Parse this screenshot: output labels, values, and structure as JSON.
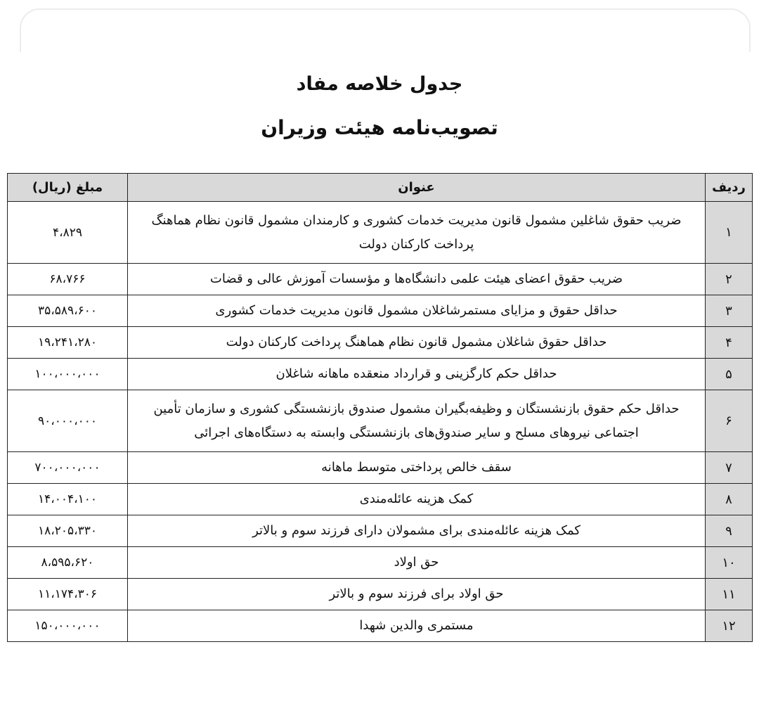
{
  "title": "جدول خلاصه مفاد",
  "subtitle": "تصویب‌نامه هیئت وزیران",
  "table": {
    "headers": {
      "row_no": "ردیف",
      "title": "عنوان",
      "amount": "مبلغ (ریال)"
    },
    "rows": [
      {
        "no": "۱",
        "title": "ضریب حقوق شاغلین مشمول قانون مدیریت خدمات کشوری و کارمندان مشمول قانون نظام هماهنگ پرداخت کارکنان دولت",
        "amount": "۴،۸۲۹"
      },
      {
        "no": "۲",
        "title": "ضریب حقوق اعضای هیئت علمی دانشگاه‌ها و مؤسسات آموزش عالی و قضات",
        "amount": "۶۸،۷۶۶"
      },
      {
        "no": "۳",
        "title": "حداقل حقوق و مزایای مستمرشاغلان مشمول قانون مدیریت خدمات کشوری",
        "amount": "۳۵،۵۸۹،۶۰۰"
      },
      {
        "no": "۴",
        "title": "حداقل حقوق شاغلان مشمول قانون نظام هماهنگ پرداخت کارکنان دولت",
        "amount": "۱۹،۲۴۱،۲۸۰"
      },
      {
        "no": "۵",
        "title": "حداقل حکم کارگزینی و قرارداد منعقده ماهانه شاغلان",
        "amount": "۱۰۰،۰۰۰،۰۰۰"
      },
      {
        "no": "۶",
        "title": "حداقل حکم حقوق بازنشستگان و وظیفه‌بگیران مشمول صندوق بازنشستگی کشوری و سازمان تأمین اجتماعی نیروهای مسلح و سایر صندوق‌های بازنشستگی وابسته به دستگاه‌های اجرائی",
        "amount": "۹۰،۰۰۰،۰۰۰"
      },
      {
        "no": "۷",
        "title": "سقف خالص پرداختی متوسط ماهانه",
        "amount": "۷۰۰،۰۰۰،۰۰۰"
      },
      {
        "no": "۸",
        "title": "کمک هزینه عائله‌مندی",
        "amount": "۱۴،۰۰۴،۱۰۰"
      },
      {
        "no": "۹",
        "title": "کمک هزینه عائله‌مندی برای مشمولان دارای فرزند سوم و بالاتر",
        "amount": "۱۸،۲۰۵،۳۳۰"
      },
      {
        "no": "۱۰",
        "title": "حق اولاد",
        "amount": "۸،۵۹۵،۶۲۰"
      },
      {
        "no": "۱۱",
        "title": "حق اولاد برای فرزند سوم و بالاتر",
        "amount": "۱۱،۱۷۴،۳۰۶"
      },
      {
        "no": "۱۲",
        "title": "مستمری والدین شهدا",
        "amount": "۱۵۰،۰۰۰،۰۰۰"
      }
    ]
  }
}
